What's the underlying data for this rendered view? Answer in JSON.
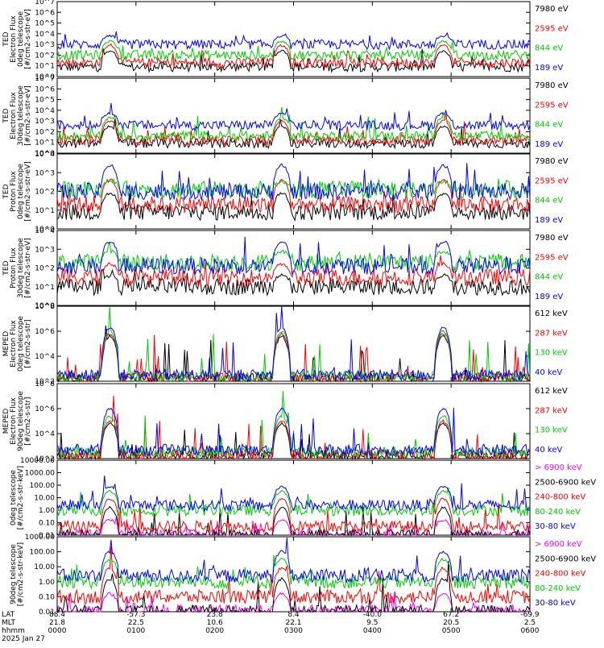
{
  "panels": [
    {
      "id": "ted-e-0",
      "ylabel": [
        "TED",
        "Electron Flux",
        "0deg telescope",
        "[#/cm2-s-str-eV]"
      ],
      "scale": "log",
      "yticks": [
        "10^0",
        "10^1",
        "10^2",
        "10^3",
        "10^4",
        "10^5",
        "10^6",
        "10^7"
      ],
      "ylim": [
        1,
        10000000
      ],
      "legend": [
        {
          "label": "7980 eV",
          "color": "#000000"
        },
        {
          "label": "2595 eV",
          "color": "#ff0000"
        },
        {
          "label": "844 eV",
          "color": "#00cc00"
        },
        {
          "label": "189 eV",
          "color": "#0000ff"
        }
      ],
      "base_log": [
        0.9,
        1.3,
        2.0,
        3.0
      ],
      "peak_log": [
        2.4,
        2.9,
        3.3,
        3.8
      ]
    },
    {
      "id": "ted-e-30",
      "ylabel": [
        "TED",
        "Electron Flux",
        "30deg telescope",
        "[#/cm2-s-str-eV]"
      ],
      "scale": "log",
      "yticks": [
        "10^0",
        "10^1",
        "10^2",
        "10^3",
        "10^4",
        "10^5",
        "10^6",
        "10^7"
      ],
      "ylim": [
        1,
        10000000
      ],
      "legend": [
        {
          "label": "7980 eV",
          "color": "#000000"
        },
        {
          "label": "2595 eV",
          "color": "#ff0000"
        },
        {
          "label": "844 eV",
          "color": "#00cc00"
        },
        {
          "label": "189 eV",
          "color": "#0000ff"
        }
      ],
      "base_log": [
        0.9,
        1.2,
        1.6,
        2.6
      ],
      "peak_log": [
        2.5,
        3.0,
        3.3,
        3.7
      ]
    },
    {
      "id": "ted-p-0",
      "ylabel": [
        "TED",
        "Proton Flux",
        "0deg telescope",
        "[#/cm2-s-str-eV]"
      ],
      "scale": "log",
      "yticks": [
        "10^0",
        "10^1",
        "10^2",
        "10^3",
        "10^4"
      ],
      "ylim": [
        1,
        10000
      ],
      "legend": [
        {
          "label": "7980 eV",
          "color": "#000000"
        },
        {
          "label": "2595 eV",
          "color": "#ff0000"
        },
        {
          "label": "844 eV",
          "color": "#00cc00"
        },
        {
          "label": "189 eV",
          "color": "#0000ff"
        }
      ],
      "base_log": [
        0.9,
        1.3,
        2.1,
        2.0
      ],
      "peak_log": [
        1.9,
        2.6,
        2.5,
        3.4
      ]
    },
    {
      "id": "ted-p-30",
      "ylabel": [
        "TED",
        "Proton Flux",
        "30deg telescope",
        "[#/cm2-s-str-eV]"
      ],
      "scale": "log",
      "yticks": [
        "10^0",
        "10^1",
        "10^2",
        "10^3",
        "10^4"
      ],
      "ylim": [
        1,
        10000
      ],
      "legend": [
        {
          "label": "7980 eV",
          "color": "#000000"
        },
        {
          "label": "2595 eV",
          "color": "#ff0000"
        },
        {
          "label": "844 eV",
          "color": "#00cc00"
        },
        {
          "label": "189 eV",
          "color": "#0000ff"
        }
      ],
      "base_log": [
        1.0,
        1.5,
        2.3,
        2.1
      ],
      "peak_log": [
        1.6,
        2.2,
        2.9,
        3.4
      ]
    },
    {
      "id": "meped-e-0",
      "ylabel": [
        "MEPED",
        "Electron Flux",
        "0deg telescope",
        "[#/cm2-s-str]"
      ],
      "scale": "log",
      "yticks": [
        "10^2",
        "10^4",
        "10^6",
        "10^8"
      ],
      "ylim": [
        100,
        100000000
      ],
      "legend": [
        {
          "label": "612 keV",
          "color": "#000000"
        },
        {
          "label": "287 keV",
          "color": "#ff0000"
        },
        {
          "label": "130 keV",
          "color": "#00cc00"
        },
        {
          "label": "40 keV",
          "color": "#0000ff"
        }
      ],
      "base_log": [
        2.2,
        2.3,
        2.4,
        2.5
      ],
      "peak_log": [
        5.6,
        5.8,
        6.0,
        6.3
      ]
    },
    {
      "id": "meped-e-90",
      "ylabel": [
        "MEPED",
        "Electron Flux",
        "90deg telescope",
        "[#/cm2-s-str]"
      ],
      "scale": "log",
      "yticks": [
        "10^2",
        "10^4",
        "10^6",
        "10^8"
      ],
      "ylim": [
        100,
        100000000
      ],
      "legend": [
        {
          "label": "612 keV",
          "color": "#000000"
        },
        {
          "label": "287 keV",
          "color": "#ff0000"
        },
        {
          "label": "130 keV",
          "color": "#00cc00"
        },
        {
          "label": "40 keV",
          "color": "#0000ff"
        }
      ],
      "base_log": [
        2.2,
        2.3,
        2.5,
        2.7
      ],
      "peak_log": [
        4.8,
        5.0,
        5.4,
        6.0
      ]
    },
    {
      "id": "meped-p-0",
      "ylabel": [
        "",
        "0deg telescope",
        "[#/cm2-s-str-keV]"
      ],
      "scale": "log",
      "yticks": [
        "0.01",
        "0.10",
        "1.00",
        "10.00",
        "100.00",
        "1000.00",
        "10000.00"
      ],
      "ylim": [
        0.01,
        10000
      ],
      "legend": [
        {
          "label": "> 6900 keV",
          "color": "#ff00ff"
        },
        {
          "label": "2500-6900 keV",
          "color": "#000000"
        },
        {
          "label": "240-800 keV",
          "color": "#ff0000"
        },
        {
          "label": "80-240 keV",
          "color": "#00cc00"
        },
        {
          "label": "30-80 keV",
          "color": "#0000ff"
        }
      ],
      "base_log": [
        -2.0,
        -2.0,
        -1.3,
        0.0,
        0.4
      ],
      "peak_log": [
        -0.8,
        0.2,
        0.9,
        1.5,
        1.9
      ]
    },
    {
      "id": "meped-p-90",
      "ylabel": [
        "",
        "90deg telescope",
        "[#/cm2-s-str-keV]"
      ],
      "scale": "log",
      "yticks": [
        "0.01",
        "0.10",
        "1.00",
        "10.00",
        "100.00",
        "1000.00"
      ],
      "ylim": [
        0.01,
        1000
      ],
      "legend": [
        {
          "label": "> 6900 keV",
          "color": "#ff00ff"
        },
        {
          "label": "2500-6900 keV",
          "color": "#000000"
        },
        {
          "label": "240-800 keV",
          "color": "#ff0000"
        },
        {
          "label": "80-240 keV",
          "color": "#00cc00"
        },
        {
          "label": "30-80 keV",
          "color": "#0000ff"
        }
      ],
      "base_log": [
        -2.0,
        -2.0,
        -1.0,
        0.0,
        0.4
      ],
      "peak_log": [
        -0.8,
        0.2,
        0.9,
        1.5,
        2.0
      ]
    }
  ],
  "xaxis": {
    "row_labels": [
      "LAT",
      "MLT",
      "hhmm",
      "2025 Jan 27"
    ],
    "ticks": [
      {
        "lat": "88.4",
        "mlt": "21.8",
        "hhmm": "0000"
      },
      {
        "lat": "-57.3",
        "mlt": "22.5",
        "hhmm": "0100"
      },
      {
        "lat": "23.8",
        "mlt": "10.6",
        "hhmm": "0200"
      },
      {
        "lat": "8.4",
        "mlt": "22.1",
        "hhmm": "0300"
      },
      {
        "lat": "-40.0",
        "mlt": "9.5",
        "hhmm": "0400"
      },
      {
        "lat": "67.2",
        "mlt": "20.5",
        "hhmm": "0500"
      },
      {
        "lat": "-69.9",
        "mlt": "2.5",
        "hhmm": "0600"
      }
    ]
  },
  "chart_data": {
    "type": "line",
    "x_unit": "hours after 0000 UT",
    "x_range": [
      0,
      6
    ],
    "pass_centers": [
      0.67,
      2.85,
      4.9
    ],
    "series_note": "time series of particle flux per energy channel"
  }
}
